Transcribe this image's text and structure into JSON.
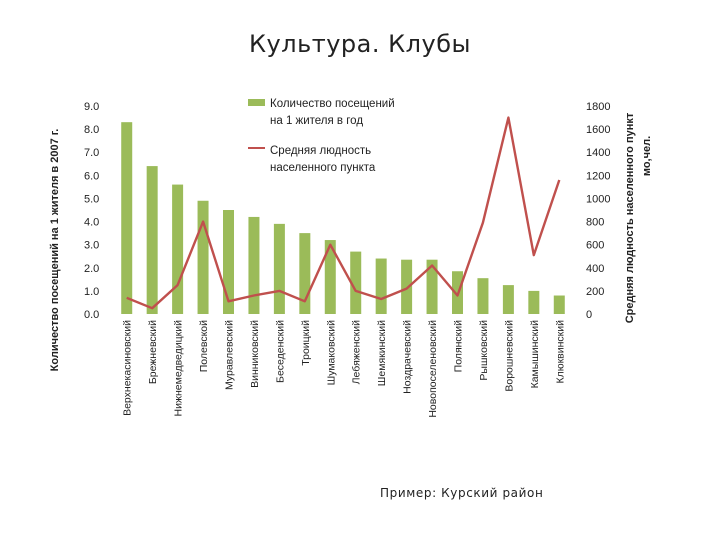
{
  "title": "Культура. Клубы",
  "footnote": "Пример: Курский район",
  "chart_data": {
    "type": "bar",
    "categories": [
      "Верхнекасиновский",
      "Брежневский",
      "Нижнемедведицкий",
      "Полевской",
      "Муравлевский",
      "Винниковский",
      "Беседенский",
      "Троицкий",
      "Шумаковский",
      "Лебяженский",
      "Шемякинский",
      "Ноздрачевский",
      "Новопоселеновский",
      "Полянский",
      "Рышковский",
      "Ворошневский",
      "Камышинский",
      "Клюквинский"
    ],
    "series": [
      {
        "name": "Количество посещений на 1 жителя в год",
        "type": "bar",
        "axis": "left",
        "color": "#9bbb59",
        "values": [
          8.3,
          6.4,
          5.6,
          4.9,
          4.5,
          4.2,
          3.9,
          3.5,
          3.2,
          2.7,
          2.4,
          2.35,
          2.35,
          1.85,
          1.55,
          1.25,
          1.0,
          0.8
        ]
      },
      {
        "name": "Средняя людность населенного пункта",
        "type": "line",
        "axis": "right",
        "color": "#c0504d",
        "values": [
          140,
          50,
          250,
          800,
          110,
          160,
          200,
          110,
          600,
          200,
          130,
          220,
          420,
          160,
          790,
          1700,
          510,
          1160
        ]
      }
    ],
    "ylabel_left": "Количество посещений на 1 жителя в 2007 г.",
    "ylabel_right": "Средняя людность населенного пункт мо,чел.",
    "ylim_left": [
      0,
      9
    ],
    "ylim_right": [
      0,
      1800
    ],
    "yticks_left": [
      "0.0",
      "1.0",
      "2.0",
      "3.0",
      "4.0",
      "5.0",
      "6.0",
      "7.0",
      "8.0",
      "9.0"
    ],
    "yticks_right": [
      "0",
      "200",
      "400",
      "600",
      "800",
      "1000",
      "1200",
      "1400",
      "1600",
      "1800"
    ],
    "grid": false,
    "legend_position": "top-center"
  }
}
